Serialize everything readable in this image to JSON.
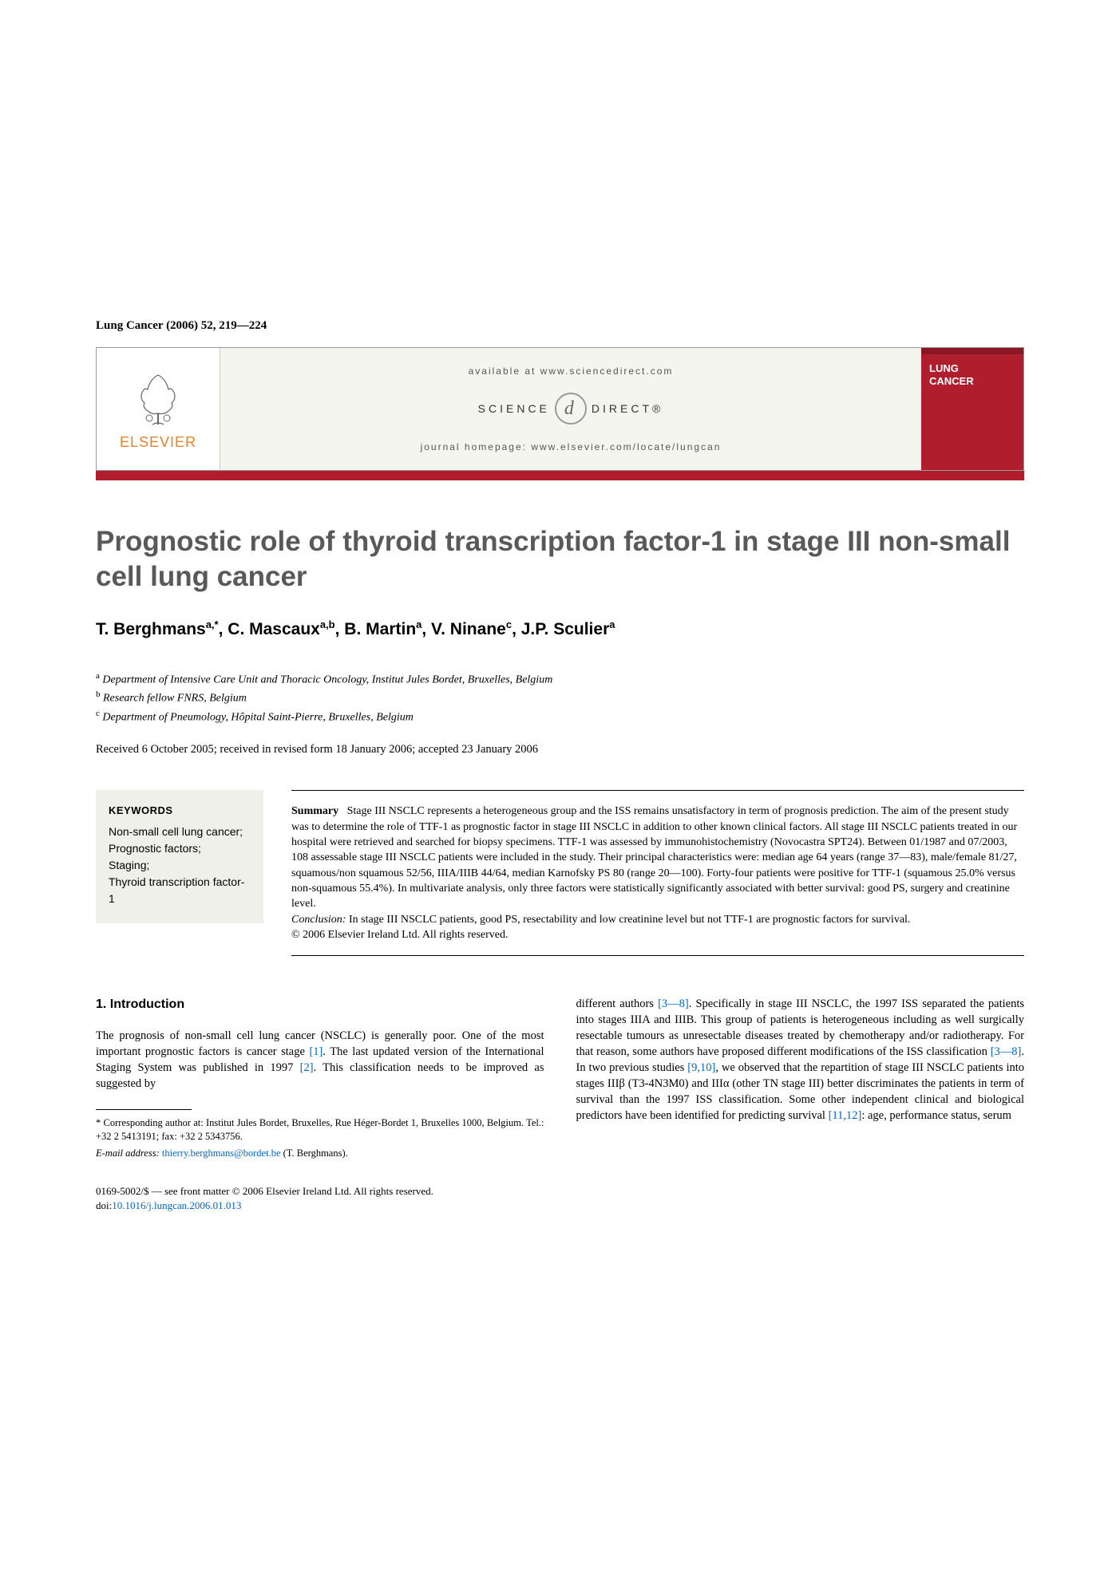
{
  "journal_ref": "Lung Cancer (2006) 52, 219—224",
  "banner": {
    "available": "available at www.sciencedirect.com",
    "sd_left": "SCIENCE",
    "sd_right": "DIRECT®",
    "homepage": "journal homepage: www.elsevier.com/locate/lungcan",
    "elsevier": "ELSEVIER",
    "journal_box_line1": "LUNG",
    "journal_box_line2": "CANCER"
  },
  "title": "Prognostic role of thyroid transcription factor-1 in stage III non-small cell lung cancer",
  "authors_html": "T. Berghmans<sup>a,*</sup>, C. Mascaux<sup>a,b</sup>, B. Martin<sup>a</sup>, V. Ninane<sup>c</sup>, J.P. Sculier<sup>a</sup>",
  "affiliations": {
    "a": "Department of Intensive Care Unit and Thoracic Oncology, Institut Jules Bordet, Bruxelles, Belgium",
    "b": "Research fellow FNRS, Belgium",
    "c": "Department of Pneumology, Hôpital Saint-Pierre, Bruxelles, Belgium"
  },
  "received": "Received 6 October 2005; received in revised form 18 January 2006; accepted 23 January 2006",
  "keywords": {
    "title": "KEYWORDS",
    "items": "Non-small cell lung cancer;\nPrognostic factors;\nStaging;\nThyroid transcription factor-1"
  },
  "summary": {
    "label": "Summary",
    "text": "Stage III NSCLC represents a heterogeneous group and the ISS remains unsatisfactory in term of prognosis prediction. The aim of the present study was to determine the role of TTF-1 as prognostic factor in stage III NSCLC in addition to other known clinical factors. All stage III NSCLC patients treated in our hospital were retrieved and searched for biopsy specimens. TTF-1 was assessed by immunohistochemistry (Novocastra SPT24). Between 01/1987 and 07/2003, 108 assessable stage III NSCLC patients were included in the study. Their principal characteristics were: median age 64 years (range 37—83), male/female 81/27, squamous/non squamous 52/56, IIIA/IIIB 44/64, median Karnofsky PS 80 (range 20—100). Forty-four patients were positive for TTF-1 (squamous 25.0% versus non-squamous 55.4%). In multivariate analysis, only three factors were statistically significantly associated with better survival: good PS, surgery and creatinine level.",
    "conclusion_label": "Conclusion:",
    "conclusion": " In stage III NSCLC patients, good PS, resectability and low creatinine level but not TTF-1 are prognostic factors for survival.",
    "copyright": "© 2006 Elsevier Ireland Ltd. All rights reserved."
  },
  "intro": {
    "heading": "1. Introduction",
    "col1_p1a": "The prognosis of non-small cell lung cancer (NSCLC) is generally poor. One of the most important prognostic factors is cancer stage ",
    "ref1": "[1]",
    "col1_p1b": ". The last updated version of the International Staging System was published in 1997 ",
    "ref2": "[2]",
    "col1_p1c": ". This classification needs to be improved as suggested by",
    "col2_p1a": "different authors ",
    "ref3_8a": "[3—8]",
    "col2_p1b": ". Specifically in stage III NSCLC, the 1997 ISS separated the patients into stages IIIA and IIIB. This group of patients is heterogeneous including as well surgically resectable tumours as unresectable diseases treated by chemotherapy and/or radiotherapy. For that reason, some authors have proposed different modifications of the ISS classification ",
    "ref3_8b": "[3—8]",
    "col2_p1c": ". In two previous studies ",
    "ref9_10": "[9,10]",
    "col2_p1d": ", we observed that the repartition of stage III NSCLC patients into stages IIIβ (T3-4N3M0) and IIIα (other TN stage III) better discriminates the patients in term of survival than the 1997 ISS classification. Some other independent clinical and biological predictors have been identified for predicting survival ",
    "ref11_12": "[11,12]",
    "col2_p1e": ": age, performance status, serum"
  },
  "footnote": {
    "corr": "* Corresponding author at: Institut Jules Bordet, Bruxelles, Rue Héger-Bordet 1, Bruxelles 1000, Belgium. Tel.: +32 2 5413191; fax: +32 2 5343756.",
    "email_label": "E-mail address: ",
    "email": "thierry.berghmans@bordet.be",
    "email_who": " (T. Berghmans)."
  },
  "footer": {
    "line1": "0169-5002/$ — see front matter © 2006 Elsevier Ireland Ltd. All rights reserved.",
    "doi_label": "doi:",
    "doi": "10.1016/j.lungcan.2006.01.013"
  },
  "colors": {
    "accent_red": "#b01e2e",
    "elsevier_orange": "#e8832b",
    "title_gray": "#595959",
    "link_blue": "#0066cc"
  }
}
